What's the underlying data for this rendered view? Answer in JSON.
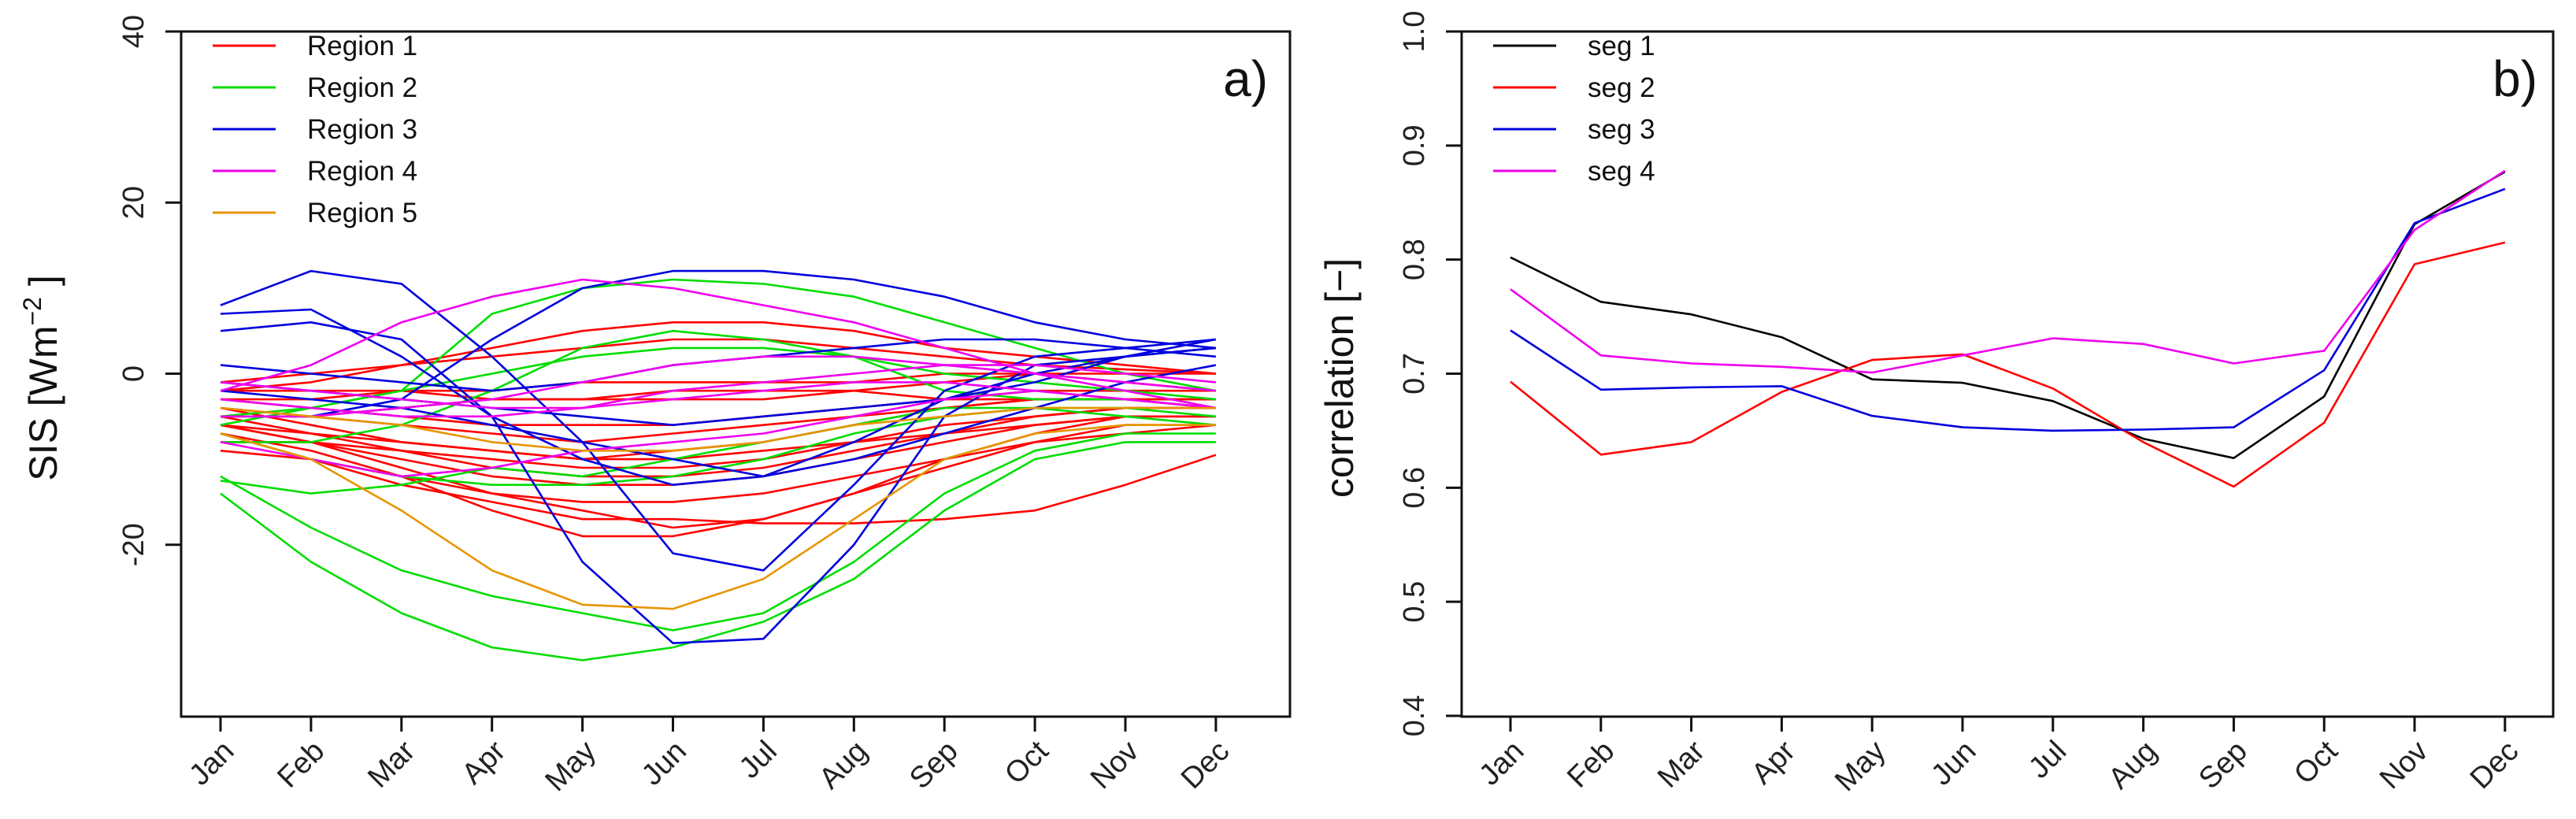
{
  "chart_data": [
    {
      "type": "line",
      "panel_label": "a)",
      "ylabel": "SIS [Wm",
      "ylabel_sup": "−2",
      "ylabel_close": "]",
      "x": [
        "Jan",
        "Feb",
        "Mar",
        "Apr",
        "May",
        "Jun",
        "Jul",
        "Aug",
        "Sep",
        "Oct",
        "Nov",
        "Dec"
      ],
      "ylim": [
        -40,
        40
      ],
      "yticks": [
        -20,
        0,
        20,
        40
      ],
      "ytick_labels": [
        "-20",
        "0",
        "20",
        "40"
      ],
      "legend_position": "top-left",
      "legend": [
        {
          "label": "Region 1",
          "color": "#ff0000"
        },
        {
          "label": "Region 2",
          "color": "#00dd00"
        },
        {
          "label": "Region 3",
          "color": "#0000dd"
        },
        {
          "label": "Region 4",
          "color": "#ee00ee"
        },
        {
          "label": "Region 5",
          "color": "#e69500"
        }
      ],
      "series": [
        {
          "name": "Region 1",
          "color": "#ff0000",
          "values": [
            -1,
            0,
            1,
            2,
            3,
            4,
            4,
            3,
            2,
            1,
            0.5,
            0
          ]
        },
        {
          "name": "Region 1",
          "color": "#ff0000",
          "values": [
            -2,
            -1,
            1,
            3,
            5,
            6,
            6,
            5,
            3,
            2,
            1,
            0
          ]
        },
        {
          "name": "Region 1",
          "color": "#ff0000",
          "values": [
            -3,
            -3,
            -2,
            -2,
            -1,
            -1,
            -1,
            -1,
            0,
            0,
            -1,
            -2
          ]
        },
        {
          "name": "Region 1",
          "color": "#ff0000",
          "values": [
            -4,
            -5,
            -6,
            -7,
            -8,
            -7,
            -6,
            -5,
            -4,
            -3,
            -3,
            -3
          ]
        },
        {
          "name": "Region 1",
          "color": "#ff0000",
          "values": [
            -5,
            -7,
            -9,
            -11,
            -12,
            -12,
            -11,
            -9,
            -7,
            -5,
            -4,
            -4
          ]
        },
        {
          "name": "Region 1",
          "color": "#ff0000",
          "values": [
            -6,
            -8,
            -11,
            -14,
            -16,
            -18,
            -17,
            -14,
            -10,
            -7,
            -5,
            -5
          ]
        },
        {
          "name": "Region 1",
          "color": "#ff0000",
          "values": [
            -7,
            -9,
            -12,
            -16,
            -19,
            -19,
            -17,
            -14,
            -11,
            -8,
            -6,
            -6
          ]
        },
        {
          "name": "Region 1",
          "color": "#ff0000",
          "values": [
            -7,
            -10,
            -13,
            -15,
            -17,
            -17,
            -17.5,
            -17.5,
            -17,
            -16,
            -13,
            -9.5
          ]
        },
        {
          "name": "Region 1",
          "color": "#ff0000",
          "values": [
            -6,
            -7,
            -8,
            -9,
            -10,
            -10,
            -9,
            -8,
            -6,
            -5,
            -4,
            -4
          ]
        },
        {
          "name": "Region 1",
          "color": "#ff0000",
          "values": [
            -8,
            -8,
            -9,
            -10,
            -11,
            -11,
            -10,
            -8,
            -7,
            -6,
            -5,
            -5
          ]
        },
        {
          "name": "Region 1",
          "color": "#ff0000",
          "values": [
            -5,
            -5,
            -4,
            -3,
            -3,
            -2,
            -2,
            -2,
            -3,
            -3,
            -3,
            -4
          ]
        },
        {
          "name": "Region 1",
          "color": "#ff0000",
          "values": [
            -3,
            -4,
            -5,
            -6,
            -6,
            -6,
            -5,
            -4,
            -3,
            -2,
            -2,
            -2
          ]
        },
        {
          "name": "Region 1",
          "color": "#ff0000",
          "values": [
            -6,
            -8,
            -10,
            -12,
            -13,
            -13,
            -12,
            -10,
            -8,
            -6,
            -5,
            -5
          ]
        },
        {
          "name": "Region 1",
          "color": "#ff0000",
          "values": [
            -9,
            -10,
            -12,
            -14,
            -15,
            -15,
            -14,
            -12,
            -10,
            -8,
            -7,
            -6
          ]
        },
        {
          "name": "Region 1",
          "color": "#ff0000",
          "values": [
            -2,
            -2,
            -2,
            -3,
            -3,
            -3,
            -3,
            -2,
            -1,
            0,
            0,
            0
          ]
        },
        {
          "name": "Region 1",
          "color": "#ff0000",
          "values": [
            -4,
            -6,
            -8,
            -9,
            -10,
            -9,
            -8,
            -6,
            -4,
            -3,
            -3,
            -3
          ]
        },
        {
          "name": "Region 2",
          "color": "#00dd00",
          "values": [
            -12,
            -18,
            -23,
            -26,
            -28,
            -30,
            -28,
            -22,
            -14,
            -9,
            -7,
            -7
          ]
        },
        {
          "name": "Region 2",
          "color": "#00dd00",
          "values": [
            -14,
            -22,
            -28,
            -32,
            -33.5,
            -32,
            -29,
            -24,
            -16,
            -10,
            -8,
            -8
          ]
        },
        {
          "name": "Region 2",
          "color": "#00dd00",
          "values": [
            -12.5,
            -14,
            -13,
            -11,
            -12,
            -10,
            -8,
            -6,
            -4,
            -4,
            -5,
            -6
          ]
        },
        {
          "name": "Region 2",
          "color": "#00dd00",
          "values": [
            -8,
            -8,
            -6,
            -2,
            3,
            5,
            4,
            2,
            -2,
            -3,
            -3,
            -4
          ]
        },
        {
          "name": "Region 2",
          "color": "#00dd00",
          "values": [
            -7,
            -10,
            -12,
            -13,
            -13,
            -12,
            -10,
            -7,
            -5,
            -4,
            -4,
            -5
          ]
        },
        {
          "name": "Region 2",
          "color": "#00dd00",
          "values": [
            -5,
            -4,
            -2,
            0,
            2,
            3,
            3,
            2,
            0,
            -1,
            -2,
            -3
          ]
        },
        {
          "name": "Region 2",
          "color": "#00dd00",
          "values": [
            -6,
            -4,
            -2,
            7,
            10,
            11,
            10.5,
            9,
            6,
            3,
            0,
            -2
          ]
        },
        {
          "name": "Region 3",
          "color": "#0000dd",
          "values": [
            8,
            12,
            10.5,
            2,
            -8,
            -21,
            -23,
            -13,
            -2,
            2,
            3,
            4
          ]
        },
        {
          "name": "Region 3",
          "color": "#0000dd",
          "values": [
            5,
            6,
            4,
            -5,
            -22,
            -31.5,
            -31,
            -20,
            -5,
            1,
            2,
            3
          ]
        },
        {
          "name": "Region 3",
          "color": "#0000dd",
          "values": [
            7,
            7.5,
            2,
            -5,
            -10,
            -13,
            -12,
            -8,
            -3,
            0,
            2,
            3
          ]
        },
        {
          "name": "Region 3",
          "color": "#0000dd",
          "values": [
            1,
            0,
            -1,
            -2,
            -1,
            1,
            2,
            3,
            4,
            4,
            3,
            2
          ]
        },
        {
          "name": "Region 3",
          "color": "#0000dd",
          "values": [
            -1,
            -2,
            -3,
            -4,
            -5,
            -6,
            -5,
            -4,
            -3,
            -1,
            2,
            4
          ]
        },
        {
          "name": "Region 3",
          "color": "#0000dd",
          "values": [
            -5,
            -5,
            -3,
            4,
            10,
            12,
            12,
            11,
            9,
            6,
            4,
            3
          ]
        },
        {
          "name": "Region 3",
          "color": "#0000dd",
          "values": [
            -2,
            -3,
            -4,
            -6,
            -8,
            -10,
            -12,
            -10,
            -7,
            -4,
            -1,
            1
          ]
        },
        {
          "name": "Region 4",
          "color": "#ee00ee",
          "values": [
            -2,
            1,
            6,
            9,
            11,
            10,
            8,
            6,
            3,
            0,
            -1,
            -2
          ]
        },
        {
          "name": "Region 4",
          "color": "#ee00ee",
          "values": [
            -5,
            -5,
            -4,
            -3,
            -1,
            1,
            2,
            2,
            1,
            0,
            -2,
            -4
          ]
        },
        {
          "name": "Region 4",
          "color": "#ee00ee",
          "values": [
            -8,
            -10,
            -12,
            -11,
            -9,
            -8,
            -7,
            -5,
            -3,
            -2,
            -3,
            -4
          ]
        },
        {
          "name": "Region 4",
          "color": "#ee00ee",
          "values": [
            -3,
            -4,
            -5,
            -5,
            -4,
            -2,
            -1,
            0,
            1,
            1,
            0,
            -1
          ]
        },
        {
          "name": "Region 4",
          "color": "#ee00ee",
          "values": [
            -1,
            -2,
            -3,
            -4,
            -4,
            -3,
            -2,
            -1,
            -1,
            -2,
            -3,
            -4
          ]
        },
        {
          "name": "Region 5",
          "color": "#e69500",
          "values": [
            -7,
            -10,
            -16,
            -23,
            -27,
            -27.5,
            -24,
            -17,
            -10,
            -7,
            -6,
            -6
          ]
        },
        {
          "name": "Region 5",
          "color": "#e69500",
          "values": [
            -4,
            -5,
            -6,
            -8,
            -9,
            -9,
            -8,
            -6,
            -5,
            -4,
            -4,
            -4
          ]
        }
      ]
    },
    {
      "type": "line",
      "panel_label": "b)",
      "ylabel": "correlation [−]",
      "x": [
        "Jan",
        "Feb",
        "Mar",
        "Apr",
        "May",
        "Jun",
        "Jul",
        "Aug",
        "Sep",
        "Oct",
        "Nov",
        "Dec"
      ],
      "ylim": [
        0.4,
        1.0
      ],
      "yticks": [
        0.4,
        0.5,
        0.6,
        0.7,
        0.8,
        0.9,
        1.0
      ],
      "ytick_labels": [
        "0.4",
        "0.5",
        "0.6",
        "0.7",
        "0.8",
        "0.9",
        "1.0"
      ],
      "legend_position": "top-left",
      "legend": [
        {
          "label": "seg 1",
          "color": "#000000"
        },
        {
          "label": "seg 2",
          "color": "#ff0000"
        },
        {
          "label": "seg 3",
          "color": "#0000dd"
        },
        {
          "label": "seg 4",
          "color": "#ee00ee"
        }
      ],
      "series": [
        {
          "name": "seg 1",
          "color": "#000000",
          "values": [
            0.802,
            0.763,
            0.752,
            0.732,
            0.695,
            0.692,
            0.676,
            0.643,
            0.626,
            0.68,
            0.831,
            0.877
          ]
        },
        {
          "name": "seg 2",
          "color": "#ff0000",
          "values": [
            0.693,
            0.629,
            0.64,
            0.684,
            0.712,
            0.717,
            0.687,
            0.64,
            0.601,
            0.657,
            0.796,
            0.815
          ]
        },
        {
          "name": "seg 3",
          "color": "#0000dd",
          "values": [
            0.738,
            0.686,
            0.688,
            0.689,
            0.663,
            0.653,
            0.65,
            0.651,
            0.653,
            0.703,
            0.832,
            0.862
          ]
        },
        {
          "name": "seg 4",
          "color": "#ee00ee",
          "values": [
            0.774,
            0.716,
            0.709,
            0.706,
            0.701,
            0.716,
            0.731,
            0.726,
            0.709,
            0.72,
            0.826,
            0.878
          ]
        }
      ]
    }
  ]
}
